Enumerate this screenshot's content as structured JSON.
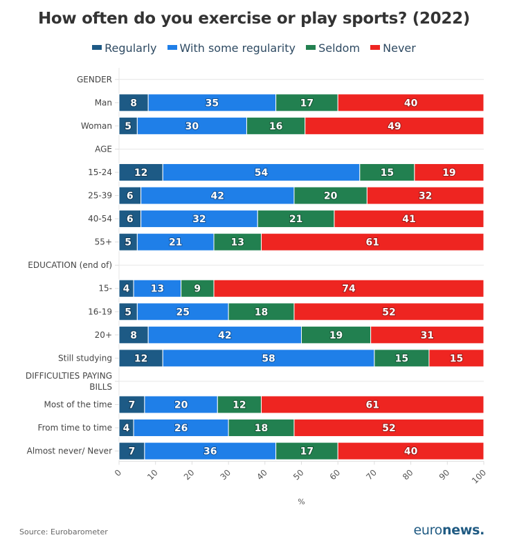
{
  "chart_data": {
    "type": "bar",
    "orientation": "horizontal",
    "stacked": true,
    "title": "How often do you exercise or play sports? (2022)",
    "xlabel": "%",
    "ylabel": "",
    "xlim": [
      0,
      100
    ],
    "x_ticks": [
      "0",
      "10",
      "20",
      "30",
      "40",
      "50",
      "60",
      "70",
      "80",
      "90",
      "100"
    ],
    "grid": true,
    "legend_position": "top-center",
    "series": [
      {
        "name": "Regularly",
        "color": "#1d5a85"
      },
      {
        "name": "With some regularity",
        "color": "#1f7fe8"
      },
      {
        "name": "Seldom",
        "color": "#228050"
      },
      {
        "name": "Never",
        "color": "#ee2521"
      }
    ],
    "rows": [
      {
        "label": "GENDER",
        "is_header": true,
        "values": null
      },
      {
        "label": "Man",
        "is_header": false,
        "values": [
          8,
          35,
          17,
          40
        ]
      },
      {
        "label": "Woman",
        "is_header": false,
        "values": [
          5,
          30,
          16,
          49
        ]
      },
      {
        "label": "AGE",
        "is_header": true,
        "values": null
      },
      {
        "label": "15-24",
        "is_header": false,
        "values": [
          12,
          54,
          15,
          19
        ]
      },
      {
        "label": "25-39",
        "is_header": false,
        "values": [
          6,
          42,
          20,
          32
        ]
      },
      {
        "label": "40-54",
        "is_header": false,
        "values": [
          6,
          32,
          21,
          41
        ]
      },
      {
        "label": "55+",
        "is_header": false,
        "values": [
          5,
          21,
          13,
          61
        ]
      },
      {
        "label": "EDUCATION (end of)",
        "is_header": true,
        "values": null
      },
      {
        "label": "15-",
        "is_header": false,
        "values": [
          4,
          13,
          9,
          74
        ]
      },
      {
        "label": "16-19",
        "is_header": false,
        "values": [
          5,
          25,
          18,
          52
        ]
      },
      {
        "label": "20+",
        "is_header": false,
        "values": [
          8,
          42,
          19,
          31
        ]
      },
      {
        "label": "Still studying",
        "is_header": false,
        "values": [
          12,
          58,
          15,
          15
        ]
      },
      {
        "label": "DIFFICULTIES PAYING BILLS",
        "is_header": true,
        "values": null
      },
      {
        "label": "Most of the time",
        "is_header": false,
        "values": [
          7,
          20,
          12,
          61
        ]
      },
      {
        "label": "From time to time",
        "is_header": false,
        "values": [
          4,
          26,
          18,
          52
        ]
      },
      {
        "label": "Almost never/ Never",
        "is_header": false,
        "values": [
          7,
          36,
          17,
          40
        ]
      }
    ]
  },
  "footer": {
    "source": "Source: Eurobarometer",
    "logo_light": "euro",
    "logo_bold": "news."
  }
}
